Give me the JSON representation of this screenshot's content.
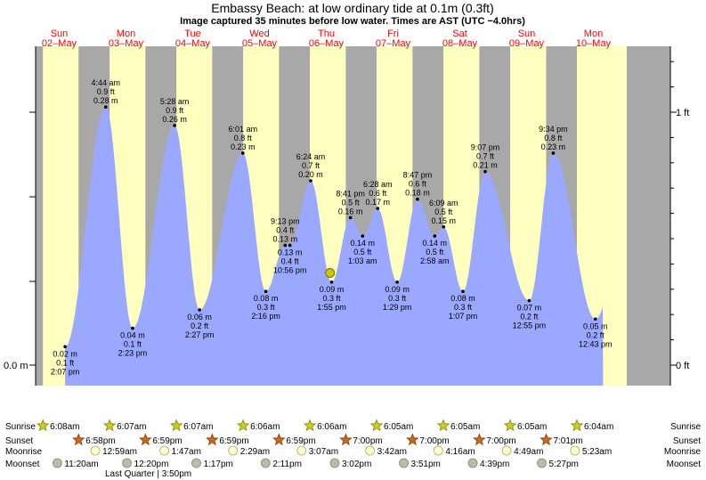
{
  "chart_data": {
    "type": "area",
    "title": "Embassy Beach: at low  ordinary tide at 0.1m (0.3ft)",
    "subtitle": "Image captured 35 minutes before low water. Times are AST (UTC −4.0hrs)",
    "days": [
      {
        "name": "Sun",
        "date": "02–May"
      },
      {
        "name": "Mon",
        "date": "03–May"
      },
      {
        "name": "Tue",
        "date": "04–May"
      },
      {
        "name": "Wed",
        "date": "05–May"
      },
      {
        "name": "Thu",
        "date": "06–May"
      },
      {
        "name": "Fri",
        "date": "07–May"
      },
      {
        "name": "Sat",
        "date": "08–May"
      },
      {
        "name": "Sun",
        "date": "09–May"
      },
      {
        "name": "Mon",
        "date": "10–May"
      }
    ],
    "y_left_label": "0.0 m",
    "y_right_labels": {
      "zero": "0 ft",
      "one": "1 ft"
    },
    "tides": [
      {
        "hour": 14.12,
        "m": 0.02,
        "m_label": "0.02 m",
        "ft_label": "0.1 ft",
        "time": "2:07 pm",
        "kind": "low"
      },
      {
        "hour": 28.73,
        "m": 0.28,
        "m_label": "0.28 m",
        "ft_label": "0.9 ft",
        "time": "4:44 am",
        "kind": "high"
      },
      {
        "hour": 38.38,
        "m": 0.04,
        "m_label": "0.04 m",
        "ft_label": "0.1 ft",
        "time": "2:23 pm",
        "kind": "low"
      },
      {
        "hour": 53.47,
        "m": 0.26,
        "m_label": "0.26 m",
        "ft_label": "0.9 ft",
        "time": "5:28 am",
        "kind": "high"
      },
      {
        "hour": 62.45,
        "m": 0.06,
        "m_label": "0.06 m",
        "ft_label": "0.2 ft",
        "time": "2:27 pm",
        "kind": "low"
      },
      {
        "hour": 78.02,
        "m": 0.23,
        "m_label": "0.23 m",
        "ft_label": "0.8 ft",
        "time": "6:01 am",
        "kind": "high"
      },
      {
        "hour": 86.27,
        "m": 0.08,
        "m_label": "0.08 m",
        "ft_label": "0.3 ft",
        "time": "2:16 pm",
        "kind": "low"
      },
      {
        "hour": 93.22,
        "m": 0.13,
        "m_label": "0.13 m",
        "ft_label": "0.4 ft",
        "time": "9:13 pm",
        "kind": "high"
      },
      {
        "hour": 94.93,
        "m": 0.13,
        "m_label": "0.13 m",
        "ft_label": "0.4 ft",
        "time": "10:56 pm",
        "kind": "low"
      },
      {
        "hour": 102.4,
        "m": 0.2,
        "m_label": "0.20 m",
        "ft_label": "0.7 ft",
        "time": "6:24 am",
        "kind": "high"
      },
      {
        "hour": 109.92,
        "m": 0.09,
        "m_label": "0.09 m",
        "ft_label": "0.3 ft",
        "time": "1:55 pm",
        "kind": "low"
      },
      {
        "hour": 116.68,
        "m": 0.16,
        "m_label": "0.16 m",
        "ft_label": "0.5 ft",
        "time": "8:41 pm",
        "kind": "high"
      },
      {
        "hour": 121.05,
        "m": 0.14,
        "m_label": "0.14 m",
        "ft_label": "0.5 ft",
        "time": "1:03 am",
        "kind": "low"
      },
      {
        "hour": 126.47,
        "m": 0.17,
        "m_label": "0.17 m",
        "ft_label": "0.6 ft",
        "time": "6:28 am",
        "kind": "high"
      },
      {
        "hour": 133.48,
        "m": 0.09,
        "m_label": "0.09 m",
        "ft_label": "0.3 ft",
        "time": "1:29 pm",
        "kind": "low"
      },
      {
        "hour": 140.78,
        "m": 0.18,
        "m_label": "0.18 m",
        "ft_label": "0.6 ft",
        "time": "8:47 pm",
        "kind": "high"
      },
      {
        "hour": 146.97,
        "m": 0.14,
        "m_label": "0.14 m",
        "ft_label": "0.5 ft",
        "time": "2:58 am",
        "kind": "low"
      },
      {
        "hour": 150.15,
        "m": 0.15,
        "m_label": "0.15 m",
        "ft_label": "0.5 ft",
        "time": "6:09 am",
        "kind": "high"
      },
      {
        "hour": 157.12,
        "m": 0.08,
        "m_label": "0.08 m",
        "ft_label": "0.3 ft",
        "time": "1:07 pm",
        "kind": "low"
      },
      {
        "hour": 165.12,
        "m": 0.21,
        "m_label": "0.21 m",
        "ft_label": "0.7 ft",
        "time": "9:07 pm",
        "kind": "high"
      },
      {
        "hour": 180.92,
        "m": 0.07,
        "m_label": "0.07 m",
        "ft_label": "0.2 ft",
        "time": "12:55 pm",
        "kind": "low"
      },
      {
        "hour": 189.57,
        "m": 0.23,
        "m_label": "0.23 m",
        "ft_label": "0.8 ft",
        "time": "9:34 pm",
        "kind": "high"
      },
      {
        "hour": 204.72,
        "m": 0.05,
        "m_label": "0.05 m",
        "ft_label": "0.2 ft",
        "time": "12:43 pm",
        "kind": "low"
      }
    ],
    "current": {
      "hour": 109.33,
      "m": 0.1
    },
    "x_range_hours": [
      0,
      216
    ],
    "y_range_m": [
      -0.026,
      0.352
    ],
    "colors": {
      "day": "#ffffc0",
      "night": "#a8a8a8",
      "tide": "#9aa8ff",
      "marker": "#c8c800",
      "text_day": "#ff0000"
    },
    "grid": false,
    "legend": "none",
    "sunrise": {
      "label": "Sunrise",
      "times": [
        "6:08am",
        "6:07am",
        "6:07am",
        "6:06am",
        "6:06am",
        "6:05am",
        "6:05am",
        "6:05am",
        "6:04am"
      ],
      "hours": [
        6.13,
        30.12,
        54.12,
        78.1,
        102.1,
        126.08,
        150.08,
        174.08,
        198.07
      ]
    },
    "sunset": {
      "label": "Sunset",
      "times": [
        "6:58pm",
        "6:59pm",
        "6:59pm",
        "6:59pm",
        "7:00pm",
        "7:00pm",
        "7:00pm",
        "7:01pm"
      ],
      "hours": [
        18.97,
        42.98,
        66.98,
        90.98,
        115.0,
        139.0,
        163.0,
        187.02
      ]
    },
    "moonrise": {
      "label": "Moonrise",
      "times": [
        "12:59am",
        "1:47am",
        "2:29am",
        "3:07am",
        "3:42am",
        "4:16am",
        "4:49am",
        "5:23am"
      ],
      "hours": [
        24.98,
        49.78,
        74.48,
        99.12,
        123.7,
        148.27,
        172.82,
        197.38
      ]
    },
    "moonset": {
      "label": "Moonset",
      "times": [
        "11:20am",
        "12:20pm",
        "1:17pm",
        "2:11pm",
        "3:02pm",
        "3:51pm",
        "4:39pm",
        "5:27pm"
      ],
      "hours": [
        11.33,
        36.33,
        61.28,
        86.18,
        111.03,
        135.85,
        160.65,
        185.45
      ]
    },
    "moon_phase_note": "Last Quarter | 3:50pm"
  }
}
